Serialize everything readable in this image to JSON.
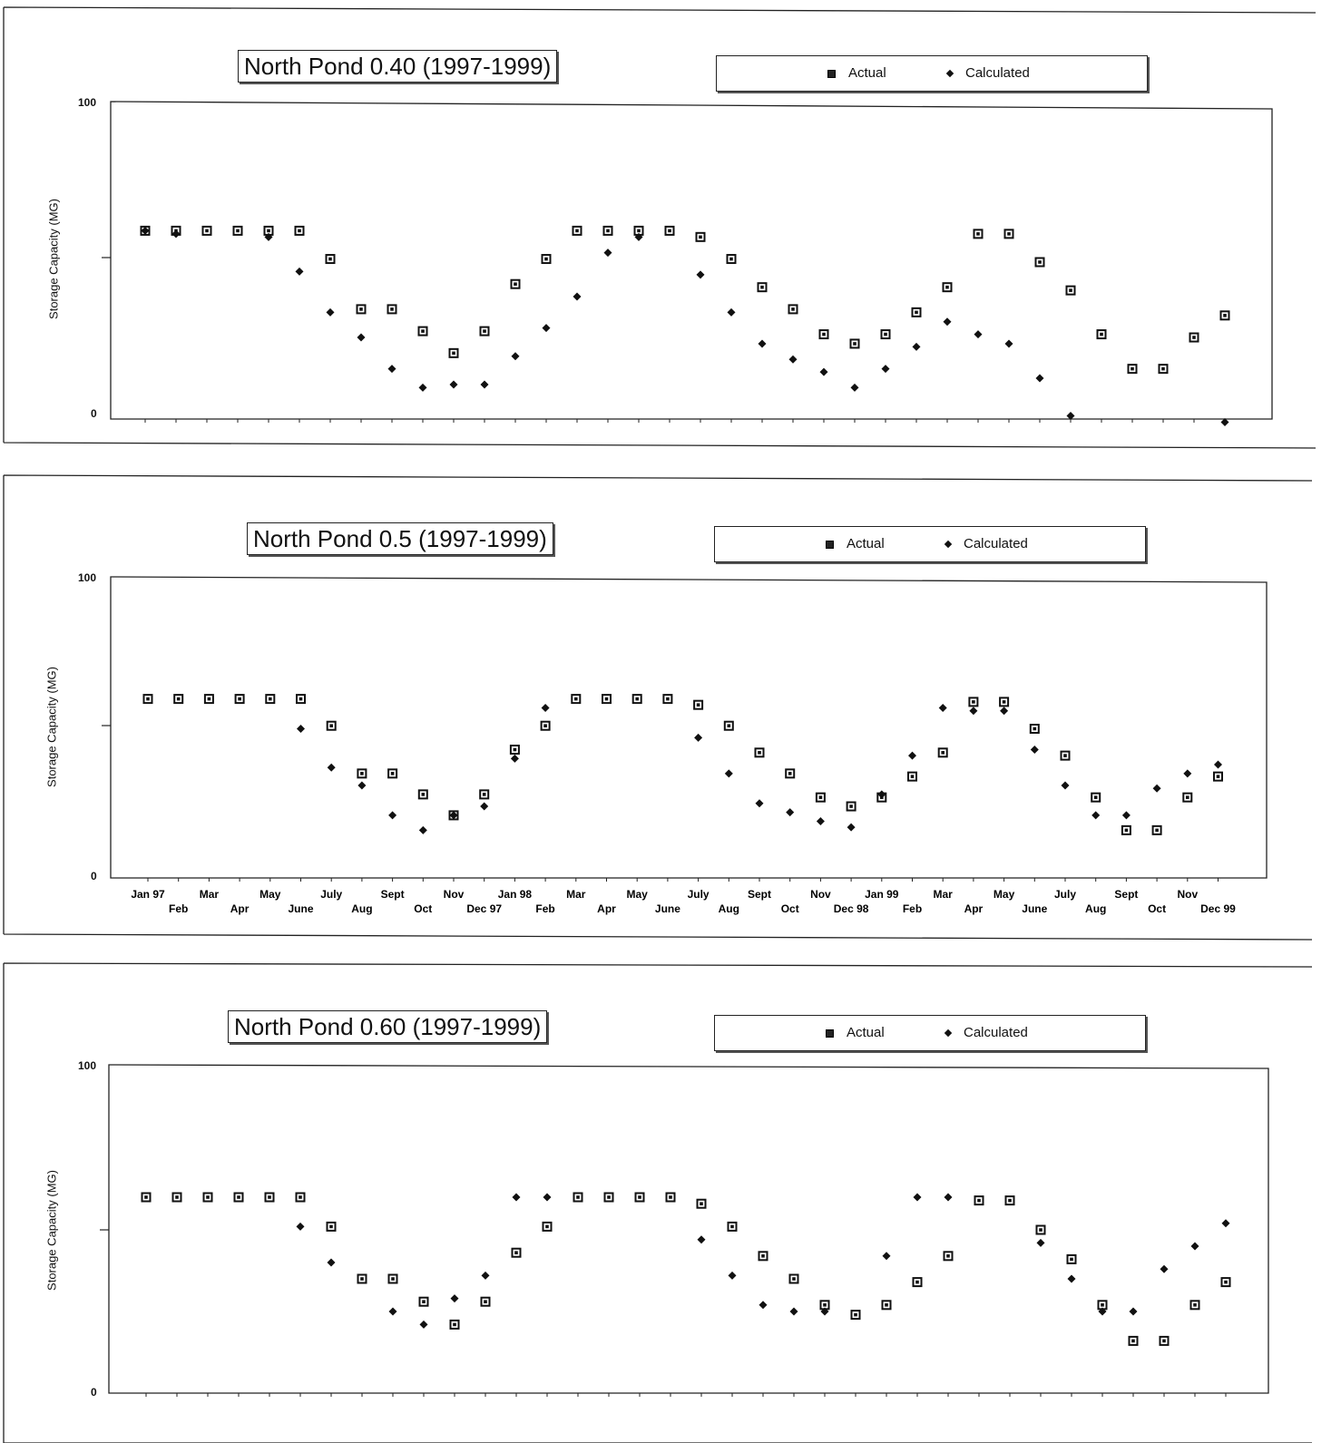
{
  "legend": {
    "actual": "Actual",
    "calculated": "Calculated"
  },
  "y_axis_label": "Storage Capacity (MG)",
  "x_tick_labels_upper": [
    "Jan 97",
    "Mar",
    "May",
    "July",
    "Sept",
    "Nov",
    "Jan 98",
    "Mar",
    "May",
    "July",
    "Sept",
    "Nov",
    "Jan 99",
    "Mar",
    "May",
    "July",
    "Sept",
    "Nov"
  ],
  "x_tick_labels_lower": [
    "Feb",
    "Apr",
    "June",
    "Aug",
    "Oct",
    "Dec 97",
    "Feb",
    "Apr",
    "June",
    "Aug",
    "Oct",
    "Dec 98",
    "Feb",
    "Apr",
    "June",
    "Aug",
    "Oct",
    "Dec 99"
  ],
  "chart_data": [
    {
      "type": "scatter",
      "title": "North Pond 0.40 (1997-1999)",
      "ylabel": "Storage Capacity (MG)",
      "ylim": [
        0,
        100
      ],
      "y_ticks": [
        "100",
        "0"
      ],
      "show_x_labels": false,
      "x_count": 36,
      "series": [
        {
          "name": "Actual",
          "marker": "square",
          "values": [
            60,
            60,
            60,
            60,
            60,
            60,
            51,
            35,
            35,
            28,
            21,
            28,
            43,
            51,
            60,
            60,
            60,
            60,
            58,
            51,
            42,
            35,
            27,
            24,
            27,
            34,
            42,
            59,
            59,
            50,
            41,
            27,
            16,
            16,
            26,
            33
          ]
        },
        {
          "name": "Calculated",
          "marker": "diamond",
          "values": [
            60,
            59,
            null,
            null,
            58,
            47,
            34,
            26,
            16,
            10,
            11,
            11,
            20,
            29,
            39,
            53,
            58,
            null,
            46,
            34,
            24,
            19,
            15,
            10,
            16,
            23,
            31,
            27,
            24,
            13,
            1,
            null,
            null,
            null,
            null,
            -1
          ]
        }
      ]
    },
    {
      "type": "scatter",
      "title": "North Pond 0.5 (1997-1999)",
      "ylabel": "Storage Capacity (MG)",
      "ylim": [
        0,
        100
      ],
      "y_ticks": [
        "100",
        "0"
      ],
      "show_x_labels": true,
      "x_count": 36,
      "series": [
        {
          "name": "Actual",
          "marker": "square",
          "values": [
            60,
            60,
            60,
            60,
            60,
            60,
            51,
            35,
            35,
            28,
            21,
            28,
            43,
            51,
            60,
            60,
            60,
            60,
            58,
            51,
            42,
            35,
            27,
            24,
            27,
            34,
            42,
            59,
            59,
            50,
            41,
            27,
            16,
            16,
            27,
            34
          ]
        },
        {
          "name": "Calculated",
          "marker": "diamond",
          "values": [
            null,
            null,
            null,
            null,
            null,
            50,
            37,
            31,
            21,
            16,
            21,
            24,
            40,
            57,
            null,
            null,
            null,
            null,
            47,
            35,
            25,
            22,
            19,
            17,
            28,
            41,
            57,
            56,
            56,
            43,
            31,
            21,
            21,
            30,
            35,
            38
          ]
        }
      ]
    },
    {
      "type": "scatter",
      "title": "North Pond 0.60 (1997-1999)",
      "ylabel": "Storage Capacity (MG)",
      "ylim": [
        0,
        100
      ],
      "y_ticks": [
        "100",
        "0"
      ],
      "show_x_labels": false,
      "x_count": 36,
      "series": [
        {
          "name": "Actual",
          "marker": "square",
          "values": [
            60,
            60,
            60,
            60,
            60,
            60,
            51,
            35,
            35,
            28,
            21,
            28,
            43,
            51,
            60,
            60,
            60,
            60,
            58,
            51,
            42,
            35,
            27,
            24,
            27,
            34,
            42,
            59,
            59,
            50,
            41,
            27,
            16,
            16,
            27,
            34
          ]
        },
        {
          "name": "Calculated",
          "marker": "diamond",
          "values": [
            null,
            null,
            null,
            null,
            null,
            51,
            40,
            null,
            25,
            21,
            29,
            36,
            60,
            60,
            null,
            null,
            null,
            null,
            47,
            36,
            27,
            25,
            25,
            null,
            42,
            60,
            60,
            null,
            null,
            46,
            35,
            25,
            25,
            38,
            45,
            52
          ]
        }
      ]
    }
  ]
}
